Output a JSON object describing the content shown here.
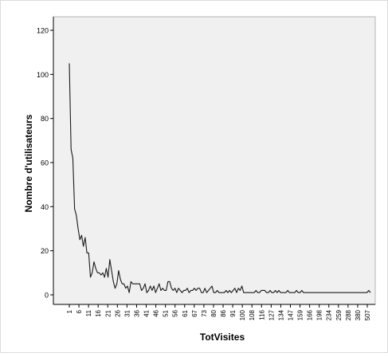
{
  "chart_data": {
    "type": "line",
    "title": "",
    "xlabel": "TotVisites",
    "ylabel": "Nombre d'utilisateurs",
    "ylim": [
      0,
      120
    ],
    "yticks": [
      0,
      20,
      40,
      60,
      80,
      100,
      120
    ],
    "grid": false,
    "legend": "none",
    "colors": {
      "plot_bg": "#f0f0f0",
      "line": "#1a1a1a",
      "axis": "#000000",
      "frame_border": "#dcdcdc"
    },
    "x_tick_labels": [
      "1",
      "6",
      "11",
      "16",
      "21",
      "26",
      "31",
      "36",
      "41",
      "46",
      "51",
      "56",
      "61",
      "67",
      "73",
      "80",
      "86",
      "91",
      "100",
      "108",
      "116",
      "127",
      "134",
      "147",
      "159",
      "166",
      "198",
      "234",
      "259",
      "288",
      "380",
      "507"
    ],
    "series": [
      {
        "values": [
          105,
          66,
          62,
          39,
          36,
          30,
          25,
          27,
          22,
          26,
          19,
          19,
          8,
          10,
          15,
          12,
          10,
          10,
          9,
          10,
          8,
          12,
          8,
          16,
          11,
          6,
          3,
          5,
          11,
          7,
          5,
          5,
          3,
          4,
          1,
          6,
          5,
          5,
          5,
          5,
          5,
          2,
          3,
          5,
          1,
          2,
          4,
          2,
          4,
          1,
          3,
          5,
          2,
          3,
          2,
          2,
          6,
          6,
          3,
          2,
          3,
          1,
          3,
          2,
          1,
          2,
          2,
          3,
          1,
          2,
          2,
          3,
          2,
          3,
          3,
          1,
          1,
          3,
          1,
          2,
          3,
          4,
          1,
          1,
          2,
          1,
          1,
          1,
          1,
          2,
          1,
          2,
          1,
          2,
          3,
          1,
          3,
          2,
          4,
          1,
          1,
          1,
          1,
          1,
          1,
          1,
          2,
          1,
          1,
          2,
          2,
          2,
          1,
          1,
          2,
          1,
          1,
          2,
          1,
          2,
          1,
          1,
          1,
          1,
          2,
          1,
          1,
          1,
          1,
          2,
          1,
          1,
          2,
          1,
          1,
          1,
          1,
          1,
          1,
          1,
          1,
          1,
          1,
          1,
          1,
          1,
          1,
          1,
          1,
          1,
          1,
          1,
          1,
          1,
          1,
          1,
          1,
          1,
          1,
          1,
          1,
          1,
          1,
          1,
          1,
          1,
          1,
          1,
          1,
          1,
          2,
          1
        ]
      }
    ]
  }
}
